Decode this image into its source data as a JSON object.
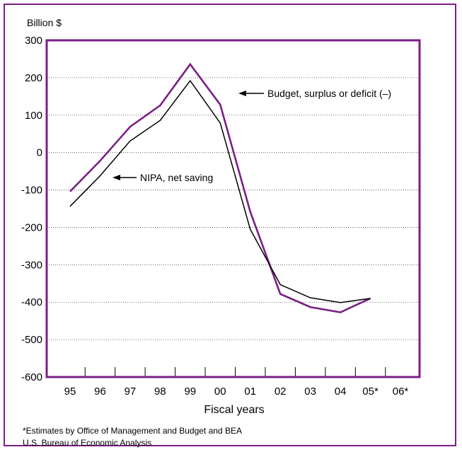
{
  "chart_data": {
    "type": "line",
    "ylabel": "Billion $",
    "xlabel": "Fiscal years",
    "ylim": [
      -600,
      300
    ],
    "y_ticks": [
      300,
      200,
      100,
      0,
      -100,
      -200,
      -300,
      -400,
      -500,
      -600
    ],
    "categories": [
      "95",
      "96",
      "97",
      "98",
      "99",
      "00",
      "01",
      "02",
      "03",
      "04",
      "05*",
      "06*"
    ],
    "grid": true,
    "series": [
      {
        "name": "Budget, surplus or deficit (–)",
        "color": "#7b1f86",
        "values": [
          -104,
          -22,
          69,
          126,
          236,
          128,
          -158,
          -378,
          -413,
          -427,
          -390,
          null
        ]
      },
      {
        "name": "NIPA, net saving",
        "color": "#000000",
        "values": [
          -144,
          -62,
          31,
          86,
          192,
          79,
          -205,
          -353,
          -388,
          -401,
          -390,
          null
        ]
      }
    ],
    "annotations": [
      {
        "text": "Budget, surplus or deficit (–)",
        "series": 0,
        "category": "00"
      },
      {
        "text": "NIPA, net saving",
        "series": 1,
        "category": "96"
      }
    ]
  },
  "footnote": "*Estimates by Office of Management and Budget and BEA",
  "source": "U.S. Bureau of Economic Analysis"
}
